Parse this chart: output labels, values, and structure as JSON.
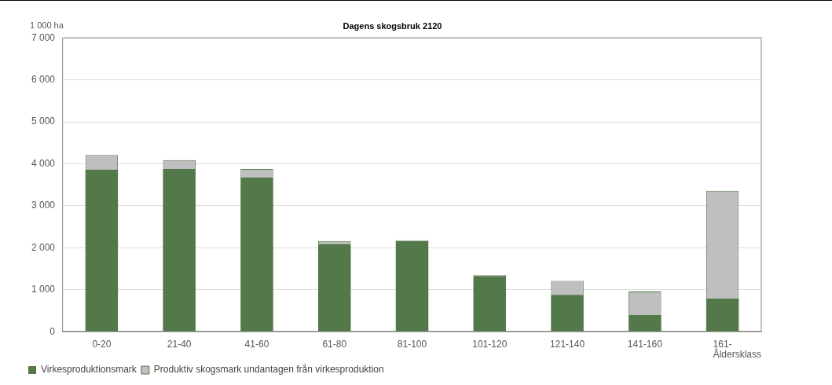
{
  "chart_data": {
    "type": "bar",
    "title": "Dagens skogsbruk 2120",
    "ylabel": "1 000 ha",
    "xlabel": "Åldersklass",
    "categories": [
      "0-20",
      "21-40",
      "41-60",
      "61-80",
      "81-100",
      "101-120",
      "121-140",
      "141-160",
      "161-"
    ],
    "stacked": true,
    "series": [
      {
        "name": "Virkesproduktionsmark",
        "color": "#53784a",
        "values": [
          3860,
          3880,
          3670,
          2090,
          2160,
          1330,
          880,
          400,
          790
        ]
      },
      {
        "name": "Produktiv skogsmark undantagen från virkesproduktion",
        "color": "#bfbfbf",
        "values": [
          350,
          210,
          210,
          70,
          20,
          20,
          330,
          560,
          2570
        ]
      }
    ],
    "ylim": [
      0,
      7000
    ],
    "yticks": [
      {
        "value": 0,
        "label": "0"
      },
      {
        "value": 1000,
        "label": "1 000"
      },
      {
        "value": 2000,
        "label": "2 000"
      },
      {
        "value": 3000,
        "label": "3 000"
      },
      {
        "value": 4000,
        "label": "4 000"
      },
      {
        "value": 5000,
        "label": "5 000"
      },
      {
        "value": 6000,
        "label": "6 000"
      },
      {
        "value": 7000,
        "label": "7 000"
      }
    ],
    "grid": "y",
    "legend": "bottom left"
  }
}
